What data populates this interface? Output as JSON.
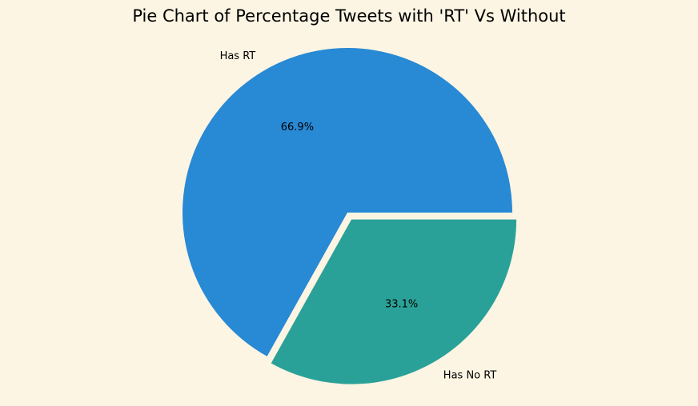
{
  "chart_data": {
    "type": "pie",
    "title": "Pie Chart of Percentage Tweets with 'RT' Vs Without",
    "categories": [
      "Has RT",
      "Has No RT"
    ],
    "values": [
      66.9,
      33.1
    ],
    "percent_labels": [
      "66.9%",
      "33.1%"
    ],
    "colors": [
      "#2889d4",
      "#2aa198"
    ],
    "exploded": [
      false,
      true
    ],
    "start_angle_deg": 0,
    "direction": "counterclockwise",
    "legend": "none"
  },
  "colors": {
    "background": "#fcf5e3",
    "text": "#000000"
  }
}
